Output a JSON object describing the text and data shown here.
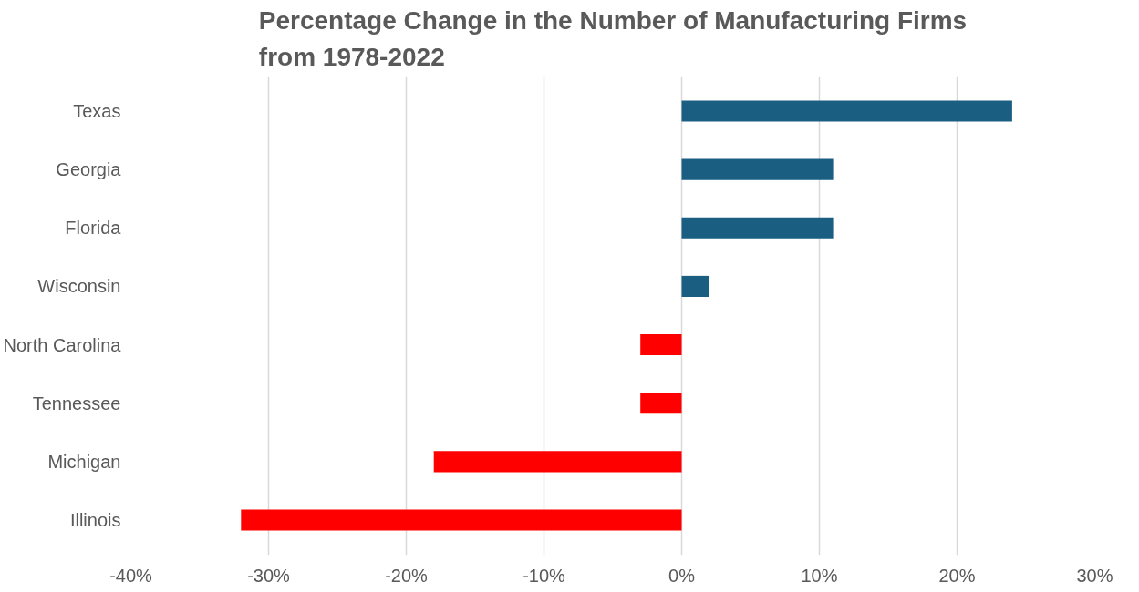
{
  "chart_data": {
    "type": "bar",
    "orientation": "horizontal",
    "title": "Percentage Change in the Number of Manufacturing Firms from 1978-2022",
    "categories": [
      "Texas",
      "Georgia",
      "Florida",
      "Wisconsin",
      "North Carolina",
      "Tennessee",
      "Michigan",
      "Illinois"
    ],
    "values": [
      24,
      11,
      11,
      2,
      -3,
      -3,
      -18,
      -32
    ],
    "colors": [
      "#1a5f82",
      "#1a5f82",
      "#1a5f82",
      "#1a5f82",
      "#ff0000",
      "#ff0000",
      "#ff0000",
      "#ff0000"
    ],
    "xlim": [
      -40,
      30
    ],
    "xticks": [
      {
        "value": -40,
        "label": "-40%"
      },
      {
        "value": -30,
        "label": "-30%"
      },
      {
        "value": -20,
        "label": "-20%"
      },
      {
        "value": -10,
        "label": "-10%"
      },
      {
        "value": 0,
        "label": "0%"
      },
      {
        "value": 10,
        "label": "10%"
      },
      {
        "value": 20,
        "label": "20%"
      },
      {
        "value": 30,
        "label": "30%"
      }
    ],
    "grid": "x"
  }
}
